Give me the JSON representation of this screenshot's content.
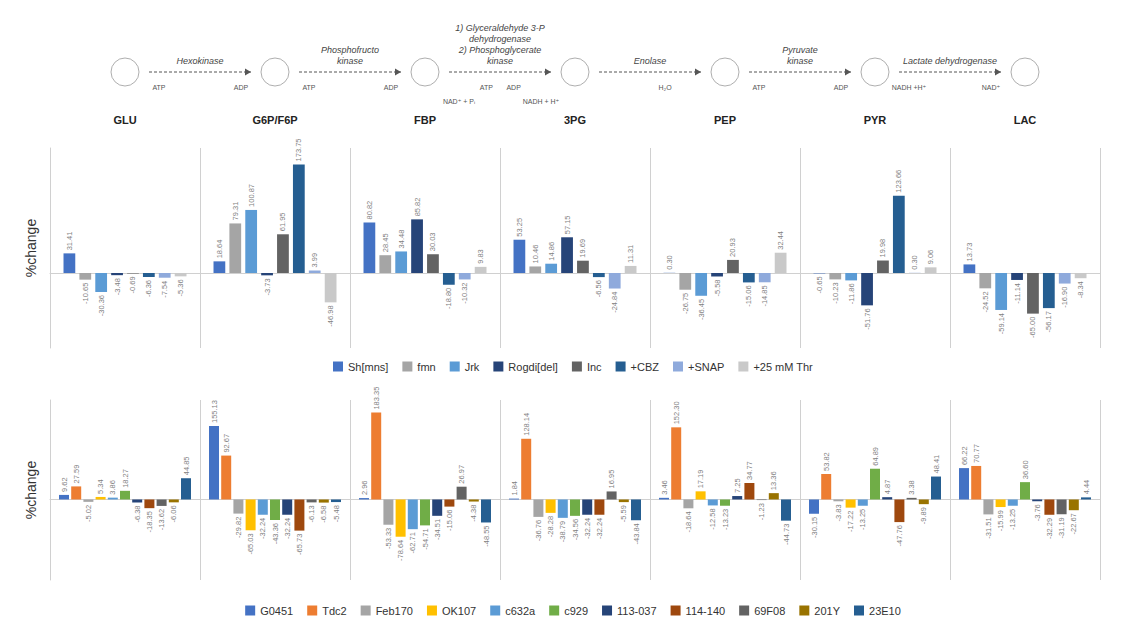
{
  "pathway": {
    "molecules": [
      "GLU",
      "G6P/F6P",
      "FBP",
      "3PG",
      "PEP",
      "PYR",
      "LAC"
    ],
    "steps": [
      {
        "enzyme": [
          "Hexokinase"
        ],
        "cofactors": [
          "ATP",
          "ADP"
        ]
      },
      {
        "enzyme": [
          "Phosphofructo",
          "kinase"
        ],
        "cofactors": [
          "ATP",
          "ADP"
        ]
      },
      {
        "enzyme": [
          "1) Glyceraldehyde 3-P",
          "dehydrogenase",
          "2) Phosphoglycerate",
          "kinase"
        ],
        "cofactors": [
          "NAD⁺ + Pᵢ",
          "ATP",
          "ADP",
          "NADH + H⁺"
        ]
      },
      {
        "enzyme": [
          "Enolase"
        ],
        "cofactors": [
          "H₂O"
        ]
      },
      {
        "enzyme": [
          "Pyruvate",
          "kinase"
        ],
        "cofactors": [
          "ATP",
          "ADP"
        ]
      },
      {
        "enzyme": [
          "Lactate dehydrogenase"
        ],
        "cofactors": [
          "NADH +H⁺",
          "NAD⁺"
        ]
      }
    ]
  },
  "chart_data": [
    {
      "type": "bar",
      "ylabel": "%change",
      "categories": [
        null,
        null,
        null,
        null,
        null,
        null,
        null
      ],
      "ylim": [
        -120,
        200
      ],
      "tick_labels": false,
      "grid": false,
      "data_labels": true,
      "legend": "bottom",
      "series": [
        {
          "name": "Sh[mns]",
          "color": "#4472c4",
          "values": [
            31.41,
            18.64,
            80.82,
            53.25,
            0.3,
            -0.65,
            13.73
          ],
          "value_labels": [
            "31.41",
            "18.64",
            "80.82",
            "53.25",
            "0.30",
            "-0.65",
            "13.73"
          ]
        },
        {
          "name": "fmn",
          "color": "#a5a5a5",
          "values": [
            -10.65,
            79.31,
            28.45,
            10.46,
            -26.75,
            -10.23,
            -24.52
          ],
          "value_labels": [
            "-10.65",
            "79.31",
            "28.45",
            "10.46",
            "-26.75",
            "-10.23",
            "-24.52"
          ]
        },
        {
          "name": "Jrk",
          "color": "#5b9bd5",
          "values": [
            -30.36,
            100.87,
            34.48,
            14.86,
            -36.45,
            -11.86,
            -59.14
          ],
          "value_labels": [
            "-30.36",
            "100.87",
            "34.48",
            "14.86",
            "-36.45",
            "-11.86",
            "-59.14"
          ]
        },
        {
          "name": "Rogdi[del]",
          "color": "#264478",
          "values": [
            -3.48,
            -3.73,
            85.82,
            57.15,
            -5.58,
            -51.76,
            -11.14
          ],
          "value_labels": [
            "-3.48",
            "-3.73",
            "85.82",
            "57.15",
            "-5.58",
            "-51.76",
            "-11.14"
          ]
        },
        {
          "name": "Inc",
          "color": "#636363",
          "values": [
            -0.69,
            61.95,
            30.03,
            19.69,
            20.93,
            19.98,
            -65.0
          ],
          "value_labels": [
            "-0.69",
            "61.95",
            "30.03",
            "19.69",
            "20.93",
            "19.98",
            "-65.00"
          ]
        },
        {
          "name": "+CBZ",
          "color": "#255e91",
          "values": [
            -6.36,
            173.75,
            -18.8,
            -6.56,
            -15.06,
            123.66,
            -56.17
          ],
          "value_labels": [
            "-6.36",
            "173.75",
            "-18.80",
            "-6.56",
            "-15.06",
            "123.66",
            "-56.17"
          ]
        },
        {
          "name": "+SNAP",
          "color": "#8faadc",
          "values": [
            -7.54,
            3.99,
            -10.32,
            -24.84,
            -14.85,
            0.3,
            -16.9
          ],
          "value_labels": [
            "-7.54",
            "3.99",
            "-10.32",
            "-24.84",
            "-14.85",
            "0.30",
            "-16.90"
          ]
        },
        {
          "name": "+25 mM Thr",
          "color": "#c9c9c9",
          "values": [
            -5.36,
            -46.98,
            9.83,
            11.31,
            32.44,
            9.06,
            -8.34
          ],
          "value_labels": [
            "-5.36",
            "-46.98",
            "9.83",
            "11.31",
            "32.44",
            "9.06",
            "-8.34"
          ]
        }
      ]
    },
    {
      "type": "bar",
      "ylabel": "%change",
      "categories": [
        null,
        null,
        null,
        null,
        null,
        null,
        null
      ],
      "ylim": [
        -170,
        210
      ],
      "tick_labels": false,
      "grid": false,
      "data_labels": true,
      "legend": "bottom",
      "series": [
        {
          "name": "G0451",
          "color": "#4472c4",
          "values": [
            9.62,
            155.13,
            2.96,
            1.84,
            3.46,
            -30.15,
            66.22
          ],
          "value_labels": [
            "9.62",
            "155.13",
            "2.96",
            "1.84",
            "3.46",
            "-30.15",
            "66.22"
          ]
        },
        {
          "name": "Tdc2",
          "color": "#ed7d31",
          "values": [
            27.59,
            92.67,
            183.35,
            128.14,
            152.3,
            53.82,
            70.77
          ],
          "value_labels": [
            "27.59",
            "92.67",
            "183.35",
            "128.14",
            "152.30",
            "53.82",
            "70.77"
          ]
        },
        {
          "name": "Feb170",
          "color": "#a5a5a5",
          "values": [
            -5.02,
            -29.82,
            -53.33,
            -36.76,
            -18.64,
            -3.83,
            -31.51
          ],
          "value_labels": [
            "-5.02",
            "-29.82",
            "-53.33",
            "-36.76",
            "-18.64",
            "-3.83",
            "-31.51"
          ]
        },
        {
          "name": "OK107",
          "color": "#ffc000",
          "values": [
            5.34,
            -65.03,
            -78.64,
            -28.28,
            17.19,
            -17.22,
            -15.99
          ],
          "value_labels": [
            "5.34",
            "-65.03",
            "-78.64",
            "-28.28",
            "17.19",
            "-17.22",
            "-15.99"
          ]
        },
        {
          "name": "c632a",
          "color": "#5b9bd5",
          "values": [
            3.86,
            -32.24,
            -62.71,
            -38.79,
            -12.58,
            -13.25,
            -13.25
          ],
          "value_labels": [
            "3.86",
            "-32.24",
            "-62.71",
            "-38.79",
            "-12.58",
            "-13.25",
            "-13.25"
          ]
        },
        {
          "name": "c929",
          "color": "#70ad47",
          "values": [
            18.27,
            -43.36,
            -54.71,
            -34.56,
            -13.23,
            64.89,
            36.6
          ],
          "value_labels": [
            "18.27",
            "-43.36",
            "-54.71",
            "-34.56",
            "-13.23",
            "64.89",
            "36.60"
          ]
        },
        {
          "name": "113-037",
          "color": "#264478",
          "values": [
            -6.38,
            -32.24,
            -34.51,
            -32.24,
            7.25,
            4.87,
            -3.76
          ],
          "value_labels": [
            "-6.38",
            "-32.24",
            "-34.51",
            "-32.24",
            "7.25",
            "4.87",
            "-3.76"
          ]
        },
        {
          "name": "114-140",
          "color": "#9e480e",
          "values": [
            -18.35,
            -65.73,
            -15.06,
            -32.24,
            34.77,
            -47.76,
            -32.29
          ],
          "value_labels": [
            "-18.35",
            "-65.73",
            "-15.06",
            "-32.24",
            "34.77",
            "-47.76",
            "-32.29"
          ]
        },
        {
          "name": "69F08",
          "color": "#636363",
          "values": [
            -13.62,
            -6.13,
            26.97,
            16.95,
            -1.23,
            3.38,
            -31.19
          ],
          "value_labels": [
            "-13.62",
            "-6.13",
            "26.97",
            "16.95",
            "-1.23",
            "3.38",
            "-31.19"
          ]
        },
        {
          "name": "201Y",
          "color": "#997300",
          "values": [
            -6.06,
            -6.58,
            -4.38,
            -5.59,
            13.36,
            -9.89,
            -22.67
          ],
          "value_labels": [
            "-6.06",
            "-6.58",
            "-4.38",
            "-5.59",
            "13.36",
            "-9.89",
            "-22.67"
          ]
        },
        {
          "name": "23E10",
          "color": "#255e91",
          "values": [
            44.85,
            -5.48,
            -48.55,
            -43.84,
            -44.73,
            48.41,
            4.44
          ],
          "value_labels": [
            "44.85",
            "-5.48",
            "-48.55",
            "-43.84",
            "-44.73",
            "48.41",
            "4.44"
          ]
        }
      ]
    }
  ]
}
